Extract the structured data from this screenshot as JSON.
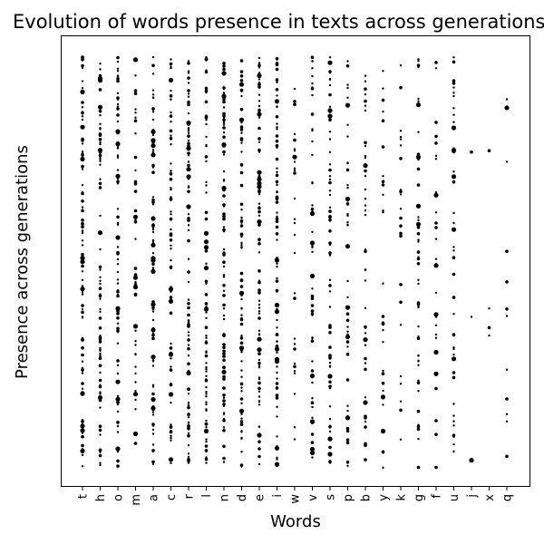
{
  "chart_data": {
    "type": "scatter",
    "title": "Evolution of words presence in texts across generations",
    "xlabel": "Words",
    "ylabel": "Presence across generations",
    "categories": [
      "t",
      "h",
      "o",
      "m",
      "a",
      "c",
      "r",
      "l",
      "n",
      "d",
      "e",
      "i",
      "w",
      "v",
      "s",
      "p",
      "b",
      "y",
      "k",
      "g",
      "f",
      "u",
      "j",
      "x",
      "q"
    ],
    "relative_density": [
      0.98,
      0.85,
      0.9,
      0.5,
      0.95,
      0.8,
      0.98,
      0.9,
      1.0,
      0.95,
      1.0,
      0.95,
      0.3,
      0.55,
      0.7,
      0.5,
      0.45,
      0.35,
      0.25,
      0.55,
      0.3,
      0.5,
      0.04,
      0.04,
      0.14
    ],
    "grid": false,
    "legend": "none"
  }
}
